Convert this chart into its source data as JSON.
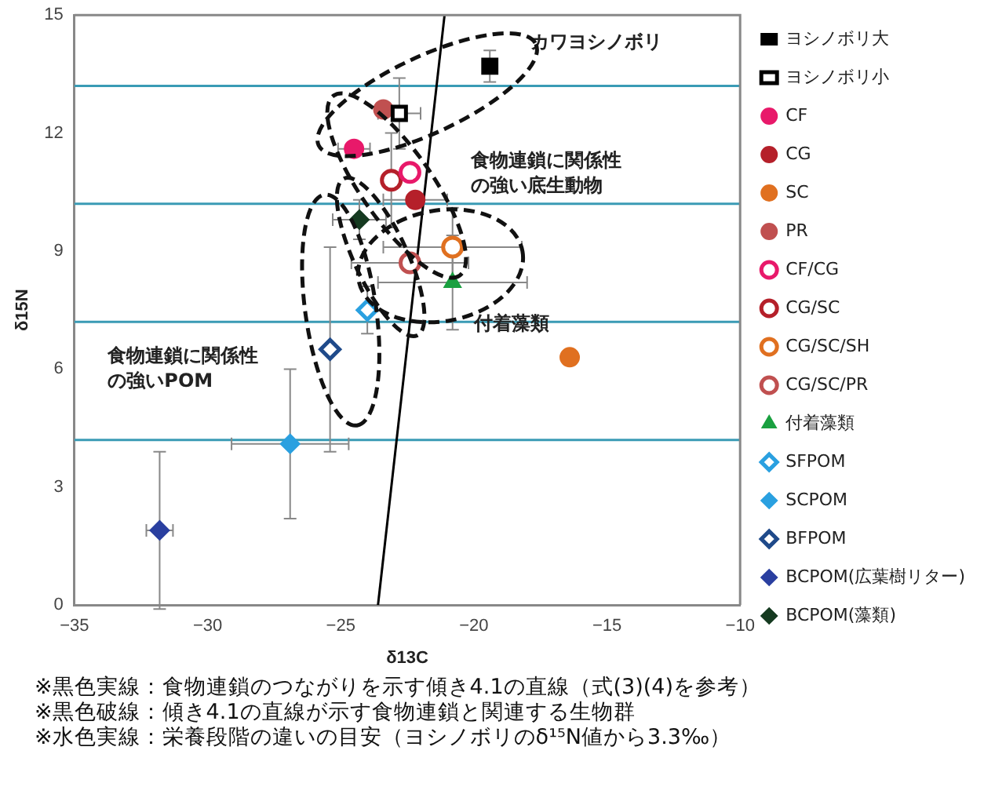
{
  "chart_data": {
    "type": "scatter",
    "xlabel": "δ13C",
    "ylabel": "δ15N",
    "xlim": [
      -35,
      -10
    ],
    "ylim": [
      0,
      15
    ],
    "xticks": [
      {
        "value": -35,
        "label": "−35"
      },
      {
        "value": -30,
        "label": "−30"
      },
      {
        "value": -25,
        "label": "−25"
      },
      {
        "value": -20,
        "label": "−20"
      },
      {
        "value": -15,
        "label": "−15"
      },
      {
        "value": -10,
        "label": "−10"
      }
    ],
    "yticks": [
      0,
      3,
      6,
      9,
      12,
      15
    ],
    "grid": false,
    "legend": "right",
    "series": [
      {
        "name": "ヨシノボリ大",
        "color": "#000000",
        "marker": "square",
        "x": [
          -19.4
        ],
        "values": [
          13.7
        ],
        "errors": [
          0.4
        ],
        "xerrors": [
          null
        ]
      },
      {
        "name": "ヨシノボリ小",
        "color": "#000000",
        "marker": "square-open",
        "x": [
          -22.8
        ],
        "values": [
          12.5
        ],
        "errors": [
          0.9
        ],
        "xerrors": [
          0.8
        ]
      },
      {
        "name": "CF",
        "color": "#e8196a",
        "marker": "circle",
        "x": [
          -24.5
        ],
        "values": [
          11.6
        ],
        "errors": [
          null
        ],
        "xerrors": [
          0.6
        ]
      },
      {
        "name": "CG",
        "color": "#b5202a",
        "marker": "circle",
        "x": [
          -22.2
        ],
        "values": [
          10.3
        ],
        "errors": [
          null
        ],
        "xerrors": [
          1.2
        ]
      },
      {
        "name": "SC",
        "color": "#e07020",
        "marker": "circle",
        "x": [
          -16.4
        ],
        "values": [
          6.3
        ],
        "errors": [
          null
        ],
        "xerrors": [
          null
        ]
      },
      {
        "name": "PR",
        "color": "#c05050",
        "marker": "circle",
        "x": [
          -23.4
        ],
        "values": [
          12.6
        ],
        "errors": [
          null
        ],
        "xerrors": [
          null
        ]
      },
      {
        "name": "CF/CG",
        "color": "#e8196a",
        "marker": "circle-open",
        "x": [
          -22.4
        ],
        "values": [
          11.0
        ],
        "errors": [
          null
        ],
        "xerrors": [
          null
        ]
      },
      {
        "name": "CG/SC",
        "color": "#b5202a",
        "marker": "circle-open",
        "x": [
          -23.1
        ],
        "values": [
          10.8
        ],
        "errors": [
          1.2
        ],
        "xerrors": [
          null
        ]
      },
      {
        "name": "CG/SC/SH",
        "color": "#e07020",
        "marker": "circle-open",
        "x": [
          -20.8
        ],
        "values": [
          9.1
        ],
        "errors": [
          1.0
        ],
        "xerrors": [
          2.6
        ]
      },
      {
        "name": "CG/SC/PR",
        "color": "#c05050",
        "marker": "circle-open",
        "x": [
          -22.4
        ],
        "values": [
          8.7
        ],
        "errors": [
          null
        ],
        "xerrors": [
          2.2
        ]
      },
      {
        "name": "付着藻類",
        "color": "#1aa040",
        "marker": "triangle",
        "x": [
          -20.8
        ],
        "values": [
          8.2
        ],
        "errors": [
          1.2
        ],
        "xerrors": [
          2.8
        ]
      },
      {
        "name": "SFPOM",
        "color": "#2aa0e0",
        "marker": "diamond-open",
        "x": [
          -24.0
        ],
        "values": [
          7.5
        ],
        "errors": [
          0.6
        ],
        "xerrors": [
          null
        ]
      },
      {
        "name": "SCPOM",
        "color": "#2aa0e0",
        "marker": "diamond",
        "x": [
          -26.9
        ],
        "values": [
          4.1
        ],
        "errors": [
          1.9
        ],
        "xerrors": [
          2.2
        ]
      },
      {
        "name": "BFPOM",
        "color": "#1f4a8a",
        "marker": "diamond-open",
        "x": [
          -25.4
        ],
        "values": [
          6.5
        ],
        "errors": [
          2.6
        ],
        "xerrors": [
          null
        ]
      },
      {
        "name": "BCPOM(広葉樹リター)",
        "color": "#2a3fa0",
        "marker": "diamond",
        "x": [
          -31.8
        ],
        "values": [
          1.9
        ],
        "errors": [
          2.0
        ],
        "xerrors": [
          0.5
        ]
      },
      {
        "name": "BCPOM(藻類)",
        "color": "#153a20",
        "marker": "diamond",
        "x": [
          -24.3
        ],
        "values": [
          9.8
        ],
        "errors": [
          0.5
        ],
        "xerrors": [
          1.0
        ]
      },
      {
        "type": "line",
        "color": "#000000",
        "marker": "none",
        "x": [
          -23.6,
          -21.1
        ],
        "values": [
          0,
          15
        ]
      }
    ],
    "ref_lines": [
      {
        "axis": "y",
        "value": 13.2,
        "color": "#3a9bb5"
      },
      {
        "axis": "y",
        "value": 10.2,
        "color": "#3a9bb5"
      },
      {
        "axis": "y",
        "value": 7.2,
        "color": "#3a9bb5"
      },
      {
        "axis": "y",
        "value": 4.2,
        "color": "#3a9bb5"
      }
    ],
    "annotations": [
      "カワヨシノボリ",
      "食物連鎖に関係性の強い底生動物",
      "付着藻類",
      "食物連鎖に関係性の強いPOM",
      "※黒色実線：食物連鎖のつながりを示す傾き4.1の直線（式(3)(4)を参考）",
      "※黒色破線：傾き4.1の直線が示す食物連鎖と関連する生物群",
      "※水色実線：栄養段階の違いの目安（ヨシノボリのδ¹⁵N値から3.3‰）"
    ]
  }
}
